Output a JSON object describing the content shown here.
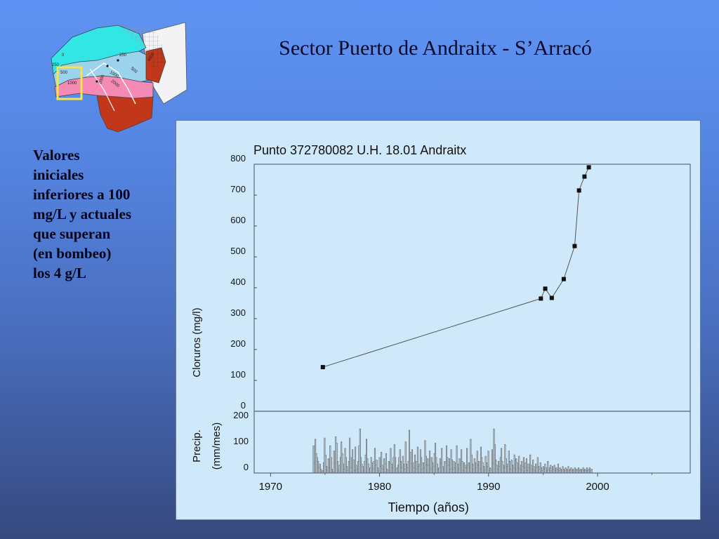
{
  "slide": {
    "title": "Sector Puerto de Andraitx - S’Arracó",
    "side_text_lines": [
      "Valores",
      "iniciales",
      "inferiores a 100",
      "mg/L y actuales",
      "que superan",
      "(en bombeo)",
      "los 4 g/L"
    ]
  },
  "map": {
    "contour_labels": [
      "0",
      "250",
      "500",
      "1000",
      "2000",
      "250",
      "500",
      "1000",
      "4000",
      "2000"
    ],
    "highlight_color": "#f3e64a"
  },
  "chart_data": [
    {
      "type": "line",
      "title": "Punto 372780082 U.H. 18.01 Andraitx",
      "ylabel": "Cloruros (mg/l)",
      "xlabel": "Tiempo (años)",
      "ylim": [
        0,
        800
      ],
      "xlim": [
        1968.5,
        2008.5
      ],
      "yticks": [
        "0",
        "100",
        "200",
        "300",
        "400",
        "500",
        "600",
        "700",
        "800"
      ],
      "xticks": [
        "1970",
        "1980",
        "1990",
        "2000"
      ],
      "grid": false,
      "series": [
        {
          "x": [
            1974.8,
            1994.8,
            1995.2,
            1995.8,
            1996.9,
            1997.9,
            1998.3,
            1998.8,
            1999.2
          ],
          "y": [
            143,
            365,
            397,
            367,
            428,
            535,
            715,
            760,
            790
          ]
        }
      ]
    },
    {
      "type": "bar",
      "ylabel_lines": [
        "Precip.",
        "(mm/mes)"
      ],
      "ylim": [
        0,
        200
      ],
      "yticks": [
        "0",
        "100",
        "200"
      ],
      "x_start": 1973.9,
      "x_end": 1999.5,
      "values": [
        105,
        40,
        130,
        75,
        60,
        45,
        20,
        35,
        15,
        5,
        10,
        40,
        135,
        70,
        25,
        10,
        55,
        20,
        105,
        60,
        15,
        5,
        85,
        40,
        140,
        115,
        45,
        10,
        30,
        60,
        120,
        75,
        35,
        15,
        95,
        60,
        25,
        10,
        45,
        135,
        60,
        20,
        90,
        50,
        10,
        100,
        30,
        15,
        45,
        105,
        170,
        60,
        35,
        25,
        10,
        45,
        70,
        130,
        55,
        35,
        15,
        20,
        60,
        40,
        15,
        45,
        95,
        30,
        50,
        20,
        10,
        60,
        25,
        80,
        30,
        15,
        55,
        35,
        75,
        15,
        10,
        45,
        40,
        95,
        35,
        20,
        60,
        110,
        60,
        15,
        20,
        30,
        60,
        90,
        45,
        20,
        65,
        35,
        15,
        120,
        35,
        20,
        45,
        165,
        80,
        35,
        90,
        40,
        20,
        70,
        45,
        15,
        100,
        25,
        35,
        90,
        60,
        15,
        40,
        20,
        125,
        65,
        30,
        55,
        30,
        85,
        15,
        60,
        40,
        25,
        75,
        115,
        60,
        35,
        15,
        20,
        55,
        40,
        95,
        25,
        15,
        45,
        40,
        105,
        60,
        30,
        55,
        15,
        90,
        50,
        15,
        45,
        20,
        40,
        105,
        35,
        15,
        55,
        30,
        90,
        45,
        10,
        40,
        30,
        20,
        95,
        30,
        40,
        20,
        130,
        70,
        35,
        15,
        55,
        40,
        20,
        85,
        30,
        45,
        15,
        100,
        60,
        40,
        25,
        10,
        65,
        40,
        25,
        85,
        10,
        20,
        15,
        90,
        40,
        170,
        110,
        50,
        30,
        15,
        45,
        25,
        60,
        95,
        45,
        30,
        20,
        110,
        55,
        25,
        35,
        85,
        45,
        15,
        50,
        30,
        20,
        70,
        15,
        55,
        40,
        20,
        65,
        15,
        30,
        45,
        25,
        60,
        20,
        40,
        55,
        10,
        35,
        20,
        70,
        30,
        15,
        50,
        25,
        10,
        35,
        20,
        60,
        25,
        15,
        40,
        20,
        10,
        25,
        15,
        35,
        20,
        10,
        45,
        15,
        20,
        30,
        10,
        25,
        15,
        30,
        10,
        20,
        15,
        35,
        10,
        20,
        15,
        10,
        25,
        15,
        10,
        20,
        15,
        10,
        25,
        10,
        15,
        20,
        10,
        15,
        10,
        20,
        15,
        10,
        15,
        20,
        10,
        15,
        10,
        15,
        20,
        10,
        15,
        10,
        20,
        10,
        15,
        20,
        10,
        15
      ]
    }
  ]
}
